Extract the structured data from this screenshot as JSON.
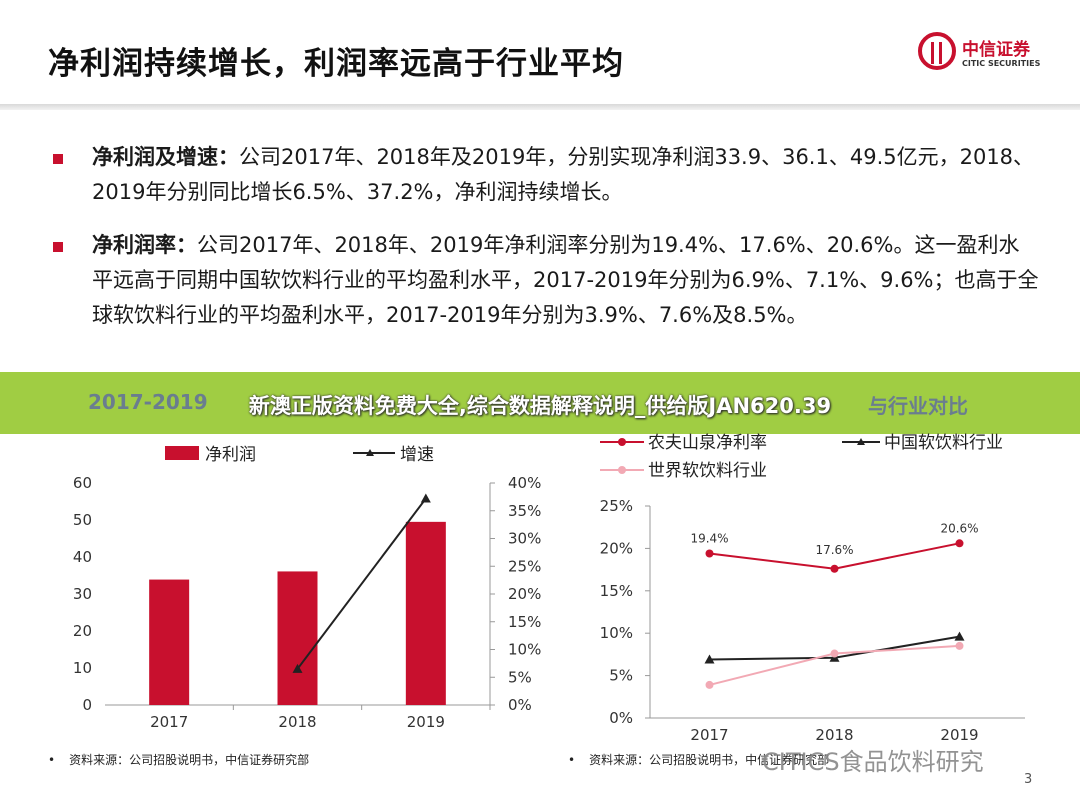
{
  "header": {
    "title": "净利润持续增长，利润率远高于行业平均"
  },
  "logo": {
    "cn": "中信证券",
    "en": "CITIC SECURITIES"
  },
  "bullets": [
    {
      "title": "净利润及增速：",
      "text": "公司2017年、2018年及2019年，分别实现净利润33.9、36.1、49.5亿元，2018、2019年分别同比增长6.5%、37.2%，净利润持续增长。"
    },
    {
      "title": "净利润率：",
      "text": "公司2017年、2018年、2019年净利润率分别为19.4%、17.6%、20.6%。这一盈利水平远高于同期中国软饮料行业的平均盈利水平，2017-2019年分别为6.9%、7.1%、9.6%；也高于全球软饮料行业的平均盈利水平，2017-2019年分别为3.9%、7.6%及8.5%。"
    }
  ],
  "banner": {
    "text": "新澳正版资料免费大全,综合数据解释说明_供给版JAN620.39",
    "behind_left": "2017-2019",
    "behind_right": "与行业对比"
  },
  "chart_data": [
    {
      "type": "bar",
      "categories": [
        "2017",
        "2018",
        "2019"
      ],
      "series": [
        {
          "name": "净利润",
          "type": "bar",
          "axis": "left",
          "values": [
            33.9,
            36.1,
            49.5
          ],
          "color": "#c8102e"
        },
        {
          "name": "增速",
          "type": "line",
          "axis": "right",
          "values": [
            null,
            6.5,
            37.2
          ],
          "color": "#222222"
        }
      ],
      "ylim_left": [
        0,
        60
      ],
      "yticks_left": [
        "0",
        "10",
        "20",
        "30",
        "40",
        "50",
        "60"
      ],
      "ylim_right": [
        0,
        40
      ],
      "yticks_right": [
        "0%",
        "5%",
        "10%",
        "15%",
        "20%",
        "25%",
        "30%",
        "35%",
        "40%"
      ],
      "legend": "top"
    },
    {
      "type": "line",
      "categories": [
        "2017",
        "2018",
        "2019"
      ],
      "series": [
        {
          "name": "农夫山泉净利率",
          "values": [
            19.4,
            17.6,
            20.6
          ],
          "labels": [
            "19.4%",
            "17.6%",
            "20.6%"
          ],
          "color": "#c8102e"
        },
        {
          "name": "中国软饮料行业",
          "values": [
            6.9,
            7.1,
            9.6
          ],
          "color": "#222222"
        },
        {
          "name": "世界软饮料行业",
          "values": [
            3.9,
            7.6,
            8.5
          ],
          "color": "#f2a9b4"
        }
      ],
      "ylim": [
        0,
        25
      ],
      "yticks": [
        "0%",
        "5%",
        "10%",
        "15%",
        "20%",
        "25%"
      ],
      "legend": "top"
    }
  ],
  "sources": {
    "left": "资料来源：公司招股说明书，中信证券研究部",
    "right": "资料来源：公司招股说明书，中信证券研究部"
  },
  "watermark": "CITICS食品饮料研究",
  "page_number": "3",
  "colors": {
    "accent": "#c8102e",
    "banner": "#9ccb3b"
  }
}
